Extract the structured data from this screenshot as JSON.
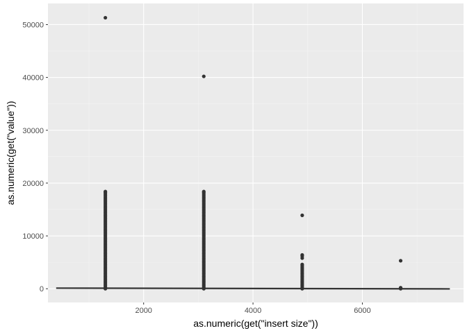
{
  "chart_data": {
    "type": "scatter",
    "title": "",
    "xlabel": "as.numeric(get(\"insert size\"))",
    "ylabel": "as.numeric(get(\"value\"))",
    "xlim": [
      250,
      7850
    ],
    "ylim": [
      -2600,
      54000
    ],
    "x_ticks": [
      2000,
      4000,
      6000
    ],
    "x_tick_labels": [
      "2000",
      "4000",
      "6000"
    ],
    "x_minor_ticks": [
      1000,
      3000,
      5000,
      7000
    ],
    "y_ticks": [
      0,
      10000,
      20000,
      30000,
      40000,
      50000
    ],
    "y_tick_labels": [
      "0",
      "10000",
      "20000",
      "30000",
      "40000",
      "50000"
    ],
    "y_minor_ticks": [
      5000,
      15000,
      25000,
      35000,
      45000
    ],
    "grid": true,
    "legend": "none",
    "colors": {
      "panel_background": "#ebebeb",
      "grid_major": "#ffffff",
      "grid_minor": "#f4f4f4",
      "points": "#333333",
      "trend_line": "#333333"
    },
    "series": [
      {
        "type": "points",
        "groups": [
          {
            "x": 1300,
            "dense_from": 0,
            "dense_to": 18400,
            "outliers": [
              51300
            ]
          },
          {
            "x": 3100,
            "dense_from": 0,
            "dense_to": 18400,
            "outliers": [
              40200
            ]
          },
          {
            "x": 4900,
            "dense_from": 0,
            "dense_to": 4600,
            "outliers": [
              5800,
              6200,
              6400,
              13900
            ]
          },
          {
            "x": 6700,
            "dense_from": 0,
            "dense_to": 200,
            "outliers": [
              5300
            ]
          }
        ]
      },
      {
        "type": "line",
        "x": [
          400,
          7600
        ],
        "y": [
          120,
          -30
        ]
      }
    ]
  }
}
